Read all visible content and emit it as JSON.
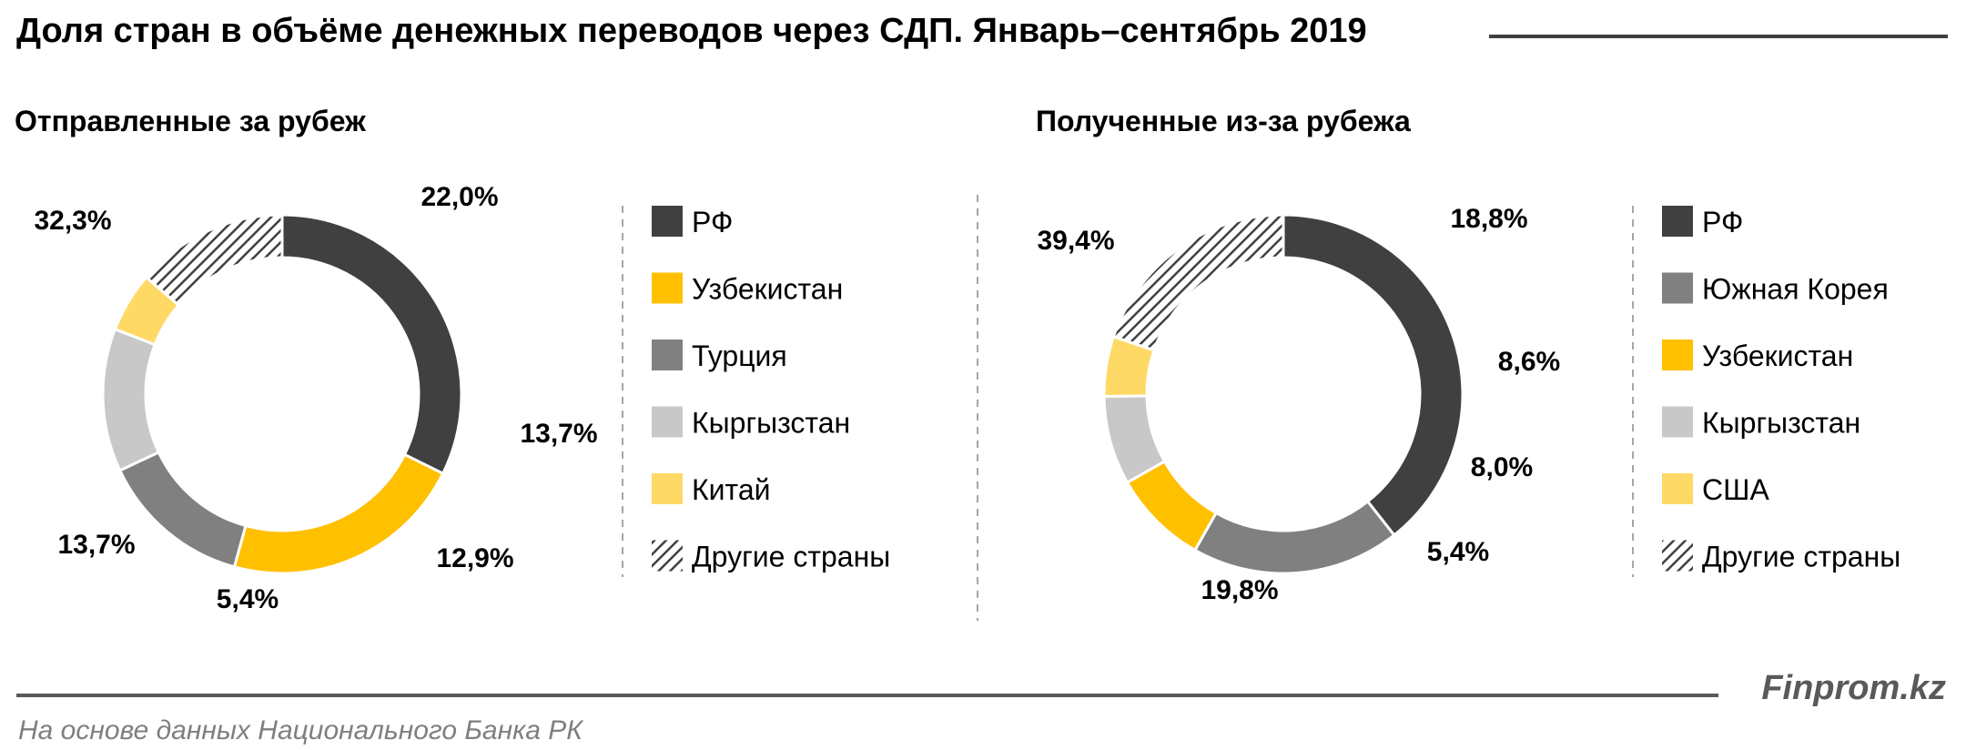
{
  "title": "Доля стран в объёме денежных переводов через СДП. Январь–сентябрь 2019",
  "brand": "Finprom.kz",
  "source": "На основе данных Национального Банка РК",
  "colors": {
    "dark": "#404040",
    "yellow": "#FFC000",
    "gray": "#808080",
    "light_gray": "#C8C8C8",
    "light_yellow": "#FFD966",
    "hatch": "#404040"
  },
  "chart_data": [
    {
      "type": "pie",
      "subtitle": "Отправленные за рубеж",
      "slices": [
        {
          "label": "РФ",
          "value": 32.3,
          "value_label": "32,3%",
          "color": "dark"
        },
        {
          "label": "Узбекистан",
          "value": 22.0,
          "value_label": "22,0%",
          "color": "yellow"
        },
        {
          "label": "Турция",
          "value": 13.7,
          "value_label": "13,7%",
          "color": "gray"
        },
        {
          "label": "Кыргызстан",
          "value": 12.9,
          "value_label": "12,9%",
          "color": "light_gray"
        },
        {
          "label": "Китай",
          "value": 5.4,
          "value_label": "5,4%",
          "color": "light_yellow"
        },
        {
          "label": "Другие страны",
          "value": 13.7,
          "value_label": "13,7%",
          "color": "hatch"
        }
      ]
    },
    {
      "type": "pie",
      "subtitle": "Полученные из-за рубежа",
      "slices": [
        {
          "label": "РФ",
          "value": 39.4,
          "value_label": "39,4%",
          "color": "dark"
        },
        {
          "label": "Южная Корея",
          "value": 18.8,
          "value_label": "18,8%",
          "color": "gray"
        },
        {
          "label": "Узбекистан",
          "value": 8.6,
          "value_label": "8,6%",
          "color": "yellow"
        },
        {
          "label": "Кыргызстан",
          "value": 8.0,
          "value_label": "8,0%",
          "color": "light_gray"
        },
        {
          "label": "США",
          "value": 5.4,
          "value_label": "5,4%",
          "color": "light_yellow"
        },
        {
          "label": "Другие страны",
          "value": 19.8,
          "value_label": "19,8%",
          "color": "hatch"
        }
      ]
    }
  ]
}
